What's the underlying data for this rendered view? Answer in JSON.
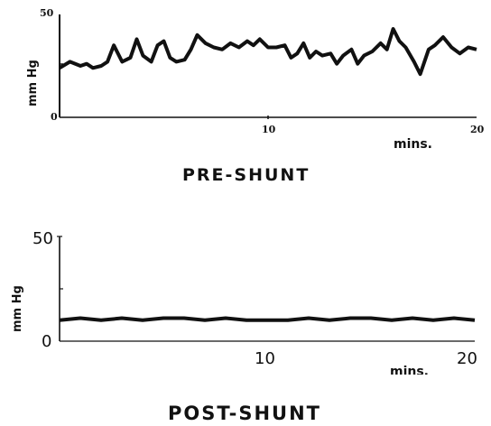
{
  "chart_data": [
    {
      "type": "line",
      "title": "PRE-SHUNT",
      "ylabel": "mm Hg",
      "xlabel": "mins.",
      "xlim": [
        0,
        20
      ],
      "ylim": [
        0,
        50
      ],
      "yticks": [
        "50",
        "0"
      ],
      "xticks": [
        "10",
        "20"
      ],
      "series": [
        {
          "x": [
            0,
            0.5,
            1,
            1.3,
            1.6,
            2,
            2.3,
            2.6,
            3,
            3.4,
            3.7,
            4,
            4.4,
            4.7,
            5,
            5.3,
            5.6,
            6,
            6.3,
            6.6,
            7,
            7.4,
            7.8,
            8.2,
            8.6,
            9,
            9.3,
            9.6,
            10,
            10.4,
            10.8,
            11.1,
            11.4,
            11.7,
            12.0,
            12.3,
            12.6,
            13.0,
            13.3,
            13.6,
            14.0,
            14.3,
            14.6,
            15.0,
            15.4,
            15.7,
            16.0,
            16.3,
            16.6,
            17.0,
            17.3,
            17.7,
            18.0,
            18.4,
            18.8,
            19.2,
            19.6,
            20
          ],
          "values": [
            24,
            27,
            25,
            26,
            24,
            25,
            27,
            35,
            27,
            29,
            38,
            30,
            27,
            35,
            37,
            29,
            27,
            28,
            33,
            40,
            36,
            34,
            33,
            36,
            34,
            37,
            35,
            38,
            34,
            34,
            35,
            29,
            31,
            36,
            29,
            32,
            30,
            31,
            26,
            30,
            33,
            26,
            30,
            32,
            36,
            33,
            43,
            37,
            34,
            27,
            21,
            33,
            35,
            39,
            34,
            31,
            34,
            33
          ]
        }
      ]
    },
    {
      "type": "line",
      "title": "POST-SHUNT",
      "ylabel": "mm Hg",
      "xlabel": "mins.",
      "xlim": [
        0,
        20
      ],
      "ylim": [
        0,
        50
      ],
      "yticks": [
        "50",
        "0"
      ],
      "xticks": [
        "10",
        "20"
      ],
      "series": [
        {
          "x": [
            0,
            1,
            2,
            3,
            4,
            5,
            6,
            7,
            8,
            9,
            10,
            11,
            12,
            13,
            14,
            15,
            16,
            17,
            18,
            19,
            20
          ],
          "values": [
            10,
            11,
            10,
            11,
            10,
            11,
            11,
            10,
            11,
            10,
            10,
            10,
            11,
            10,
            11,
            11,
            10,
            11,
            10,
            11,
            10
          ]
        }
      ]
    }
  ]
}
